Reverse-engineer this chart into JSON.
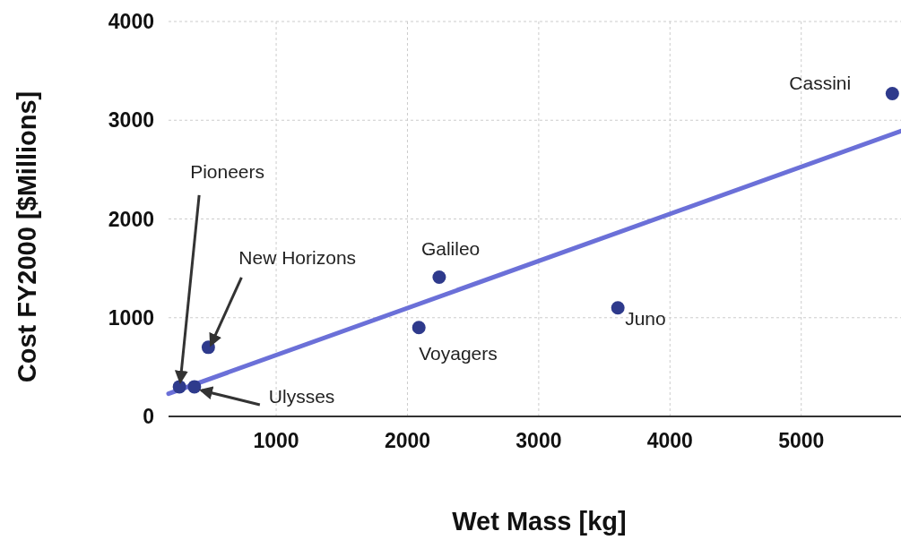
{
  "chart_data": {
    "type": "scatter",
    "xlabel": "Wet Mass [kg]",
    "ylabel": "Cost FY2000 [$Millions]",
    "xlim": [
      180,
      5760
    ],
    "ylim": [
      0,
      4000
    ],
    "xticks": [
      1000,
      2000,
      3000,
      4000,
      5000
    ],
    "yticks": [
      0,
      1000,
      2000,
      3000,
      4000
    ],
    "grid": true,
    "series": [
      {
        "marker": "circle",
        "color": "#2e3a8c",
        "x": [
          263,
          377,
          483,
          2087,
          2242,
          3603,
          5694
        ],
        "values": [
          300,
          300,
          700,
          900,
          1410,
          1100,
          3270
        ]
      },
      {
        "type": "line",
        "color": "#6b70d8",
        "x": [
          180,
          5760
        ],
        "values": [
          230,
          2890
        ]
      }
    ],
    "annotations": [
      {
        "text": "Pioneers",
        "x": 263,
        "y": 300
      },
      {
        "text": "Ulysses",
        "x": 377,
        "y": 300
      },
      {
        "text": "New Horizons",
        "x": 483,
        "y": 700
      },
      {
        "text": "Voyagers",
        "x": 2087,
        "y": 900
      },
      {
        "text": "Galileo",
        "x": 2242,
        "y": 1410
      },
      {
        "text": "Juno",
        "x": 3603,
        "y": 1100
      },
      {
        "text": "Cassini",
        "x": 5694,
        "y": 3270
      }
    ]
  }
}
